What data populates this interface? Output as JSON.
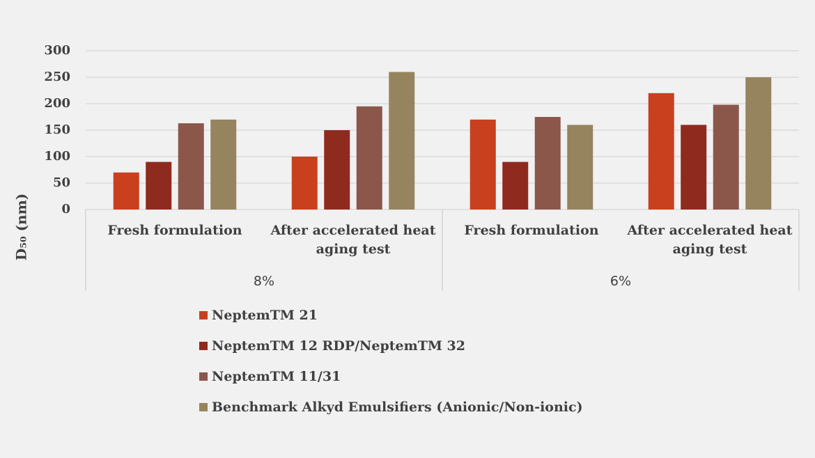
{
  "chart_data": {
    "type": "bar",
    "y_label": "D₅₀ (nm)",
    "categories": [
      "Fresh formulation",
      "After accelerated heat aging test",
      "Fresh formulation",
      "After accelerated heat aging test"
    ],
    "groups": [
      "8%",
      "6%"
    ],
    "series": [
      {
        "name": "NeptemTM 21",
        "color": "#c9401f",
        "values": [
          70,
          100,
          170,
          220
        ]
      },
      {
        "name": "NeptemTM 12 RDP/NeptemTM 32",
        "color": "#8f2a1f",
        "values": [
          90,
          150,
          90,
          160
        ]
      },
      {
        "name": "NeptemTM 11/31",
        "color": "#8a574a",
        "values": [
          163,
          195,
          175,
          198
        ]
      },
      {
        "name": "Benchmark Alkyd Emulsifiers (Anionic/Non-ionic)",
        "color": "#96845f",
        "values": [
          170,
          260,
          160,
          250
        ]
      }
    ],
    "ylim": [
      0,
      300
    ],
    "yticks": [
      0,
      50,
      100,
      150,
      200,
      250,
      300
    ],
    "grid": true
  }
}
